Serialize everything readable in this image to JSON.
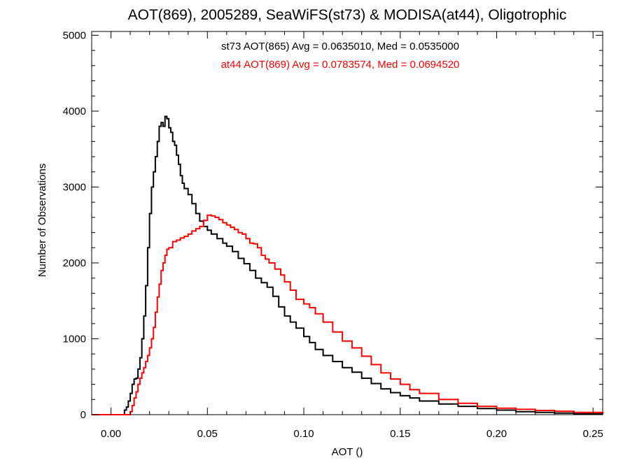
{
  "chart_data": {
    "type": "line",
    "title": "AOT(869), 2005289, SeaWiFS(st73) & MODISA(at44), Oligotrophic",
    "xlabel": "AOT ()",
    "ylabel": "Number of Observations",
    "xlim": [
      -0.01,
      0.255
    ],
    "ylim": [
      0,
      5050
    ],
    "xticks": [
      0.0,
      0.05,
      0.1,
      0.15,
      0.2,
      0.25
    ],
    "xtick_labels": [
      "0.00",
      "0.05",
      "0.10",
      "0.15",
      "0.20",
      "0.25"
    ],
    "yticks": [
      0,
      1000,
      2000,
      3000,
      4000,
      5000
    ],
    "ytick_labels": [
      "0",
      "1000",
      "2000",
      "3000",
      "4000",
      "5000"
    ],
    "grid": false,
    "series": [
      {
        "name": "st73",
        "color": "#000000",
        "stat_label": "st73 AOT(865) Avg = 0.0635010, Med = 0.0535000",
        "points": [
          [
            -0.01,
            0
          ],
          [
            0.005,
            0
          ],
          [
            0.007,
            60
          ],
          [
            0.008,
            100
          ],
          [
            0.009,
            180
          ],
          [
            0.01,
            280
          ],
          [
            0.011,
            400
          ],
          [
            0.012,
            470
          ],
          [
            0.013,
            480
          ],
          [
            0.014,
            600
          ],
          [
            0.015,
            750
          ],
          [
            0.016,
            1000
          ],
          [
            0.017,
            1300
          ],
          [
            0.018,
            1700
          ],
          [
            0.019,
            2200
          ],
          [
            0.02,
            2650
          ],
          [
            0.021,
            3000
          ],
          [
            0.022,
            3200
          ],
          [
            0.023,
            3400
          ],
          [
            0.024,
            3600
          ],
          [
            0.025,
            3800
          ],
          [
            0.026,
            3850
          ],
          [
            0.027,
            3800
          ],
          [
            0.028,
            3930
          ],
          [
            0.029,
            3900
          ],
          [
            0.03,
            3780
          ],
          [
            0.031,
            3720
          ],
          [
            0.032,
            3600
          ],
          [
            0.033,
            3550
          ],
          [
            0.034,
            3420
          ],
          [
            0.035,
            3300
          ],
          [
            0.036,
            3150
          ],
          [
            0.037,
            3050
          ],
          [
            0.038,
            2980
          ],
          [
            0.04,
            2900
          ],
          [
            0.042,
            2780
          ],
          [
            0.044,
            2650
          ],
          [
            0.046,
            2550
          ],
          [
            0.048,
            2480
          ],
          [
            0.05,
            2430
          ],
          [
            0.052,
            2380
          ],
          [
            0.055,
            2320
          ],
          [
            0.058,
            2260
          ],
          [
            0.06,
            2220
          ],
          [
            0.063,
            2150
          ],
          [
            0.066,
            2060
          ],
          [
            0.069,
            1990
          ],
          [
            0.072,
            1900
          ],
          [
            0.075,
            1800
          ],
          [
            0.078,
            1740
          ],
          [
            0.081,
            1680
          ],
          [
            0.084,
            1560
          ],
          [
            0.087,
            1420
          ],
          [
            0.09,
            1300
          ],
          [
            0.093,
            1220
          ],
          [
            0.096,
            1140
          ],
          [
            0.1,
            1030
          ],
          [
            0.103,
            950
          ],
          [
            0.106,
            860
          ],
          [
            0.11,
            780
          ],
          [
            0.115,
            700
          ],
          [
            0.12,
            620
          ],
          [
            0.125,
            560
          ],
          [
            0.13,
            480
          ],
          [
            0.135,
            410
          ],
          [
            0.14,
            340
          ],
          [
            0.145,
            290
          ],
          [
            0.15,
            250
          ],
          [
            0.155,
            220
          ],
          [
            0.16,
            180
          ],
          [
            0.17,
            140
          ],
          [
            0.18,
            110
          ],
          [
            0.19,
            80
          ],
          [
            0.2,
            60
          ],
          [
            0.21,
            40
          ],
          [
            0.22,
            30
          ],
          [
            0.23,
            20
          ],
          [
            0.24,
            12
          ],
          [
            0.255,
            5
          ]
        ]
      },
      {
        "name": "at44",
        "color": "#ff0000",
        "stat_label": "at44 AOT(869) Avg = 0.0783574, Med = 0.0694520",
        "points": [
          [
            -0.01,
            0
          ],
          [
            0.009,
            0
          ],
          [
            0.01,
            40
          ],
          [
            0.011,
            120
          ],
          [
            0.012,
            220
          ],
          [
            0.013,
            300
          ],
          [
            0.014,
            400
          ],
          [
            0.015,
            480
          ],
          [
            0.016,
            550
          ],
          [
            0.017,
            620
          ],
          [
            0.018,
            700
          ],
          [
            0.019,
            780
          ],
          [
            0.02,
            880
          ],
          [
            0.021,
            1000
          ],
          [
            0.022,
            1150
          ],
          [
            0.023,
            1350
          ],
          [
            0.024,
            1550
          ],
          [
            0.025,
            1720
          ],
          [
            0.026,
            1900
          ],
          [
            0.027,
            2000
          ],
          [
            0.028,
            2100
          ],
          [
            0.029,
            2180
          ],
          [
            0.03,
            2200
          ],
          [
            0.032,
            2280
          ],
          [
            0.034,
            2300
          ],
          [
            0.036,
            2330
          ],
          [
            0.038,
            2350
          ],
          [
            0.04,
            2380
          ],
          [
            0.042,
            2420
          ],
          [
            0.044,
            2450
          ],
          [
            0.046,
            2480
          ],
          [
            0.048,
            2560
          ],
          [
            0.05,
            2630
          ],
          [
            0.052,
            2620
          ],
          [
            0.054,
            2600
          ],
          [
            0.056,
            2570
          ],
          [
            0.058,
            2530
          ],
          [
            0.06,
            2500
          ],
          [
            0.062,
            2470
          ],
          [
            0.064,
            2440
          ],
          [
            0.066,
            2400
          ],
          [
            0.068,
            2380
          ],
          [
            0.07,
            2320
          ],
          [
            0.072,
            2260
          ],
          [
            0.074,
            2250
          ],
          [
            0.076,
            2200
          ],
          [
            0.078,
            2100
          ],
          [
            0.08,
            2050
          ],
          [
            0.082,
            2000
          ],
          [
            0.085,
            1920
          ],
          [
            0.088,
            1840
          ],
          [
            0.09,
            1750
          ],
          [
            0.093,
            1640
          ],
          [
            0.096,
            1520
          ],
          [
            0.1,
            1460
          ],
          [
            0.103,
            1410
          ],
          [
            0.106,
            1330
          ],
          [
            0.11,
            1220
          ],
          [
            0.115,
            1090
          ],
          [
            0.12,
            970
          ],
          [
            0.125,
            880
          ],
          [
            0.13,
            770
          ],
          [
            0.135,
            660
          ],
          [
            0.14,
            550
          ],
          [
            0.145,
            470
          ],
          [
            0.15,
            400
          ],
          [
            0.155,
            330
          ],
          [
            0.16,
            280
          ],
          [
            0.17,
            200
          ],
          [
            0.18,
            150
          ],
          [
            0.19,
            110
          ],
          [
            0.2,
            85
          ],
          [
            0.21,
            70
          ],
          [
            0.22,
            55
          ],
          [
            0.23,
            45
          ],
          [
            0.24,
            30
          ],
          [
            0.255,
            15
          ]
        ]
      }
    ]
  }
}
